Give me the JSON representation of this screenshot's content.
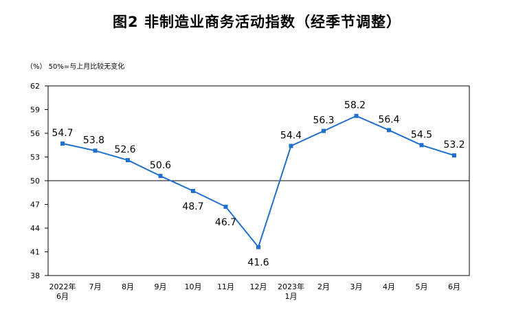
{
  "title": "图2  非制造业商务活动指数（经季节调整）",
  "unit_note": "（%）  50%=与上月比较无变化",
  "chart_data": {
    "type": "line",
    "title": "图2  非制造业商务活动指数（经季节调整）",
    "ylabel": "（%）",
    "reference_line": {
      "value": 50,
      "label": "50%=与上月比较无变化"
    },
    "ylim": [
      38,
      62
    ],
    "yticks": [
      38,
      41,
      44,
      47,
      50,
      53,
      56,
      59,
      62
    ],
    "categories": [
      [
        "2022年",
        "6月"
      ],
      [
        "7月"
      ],
      [
        "8月"
      ],
      [
        "9月"
      ],
      [
        "10月"
      ],
      [
        "11月"
      ],
      [
        "12月"
      ],
      [
        "2023年",
        "1月"
      ],
      [
        "2月"
      ],
      [
        "3月"
      ],
      [
        "4月"
      ],
      [
        "5月"
      ],
      [
        "6月"
      ]
    ],
    "series": [
      {
        "values": [
          54.7,
          53.8,
          52.6,
          50.6,
          48.7,
          46.7,
          41.6,
          54.4,
          56.3,
          58.2,
          56.4,
          54.5,
          53.2
        ]
      }
    ],
    "grid": false,
    "colors": {
      "line": "#1f6fd0",
      "axis": "#000000"
    }
  }
}
